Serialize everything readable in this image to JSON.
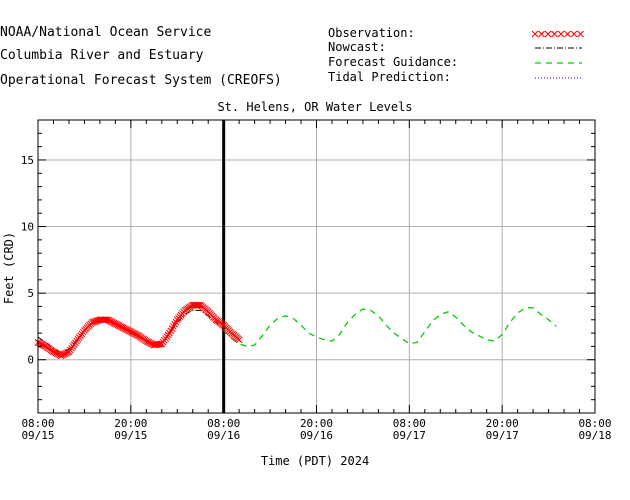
{
  "header": {
    "line1": "NOAA/National Ocean Service",
    "line2": "Columbia River and Estuary",
    "line3": "Operational Forecast System (CREOFS)"
  },
  "legend": {
    "observation": "Observation:",
    "nowcast": "Nowcast:",
    "forecast_guidance": "Forecast Guidance:",
    "tidal_prediction": "Tidal Prediction:"
  },
  "colors": {
    "observation": "#ff0000",
    "nowcast": "#000000",
    "forecast": "#00cc00",
    "tidal": "#0000ff"
  },
  "chart_data": {
    "type": "line",
    "title": "St. Helens, OR Water Levels",
    "xlabel": "Time (PDT) 2024",
    "ylabel": "Feet (CRD)",
    "ylim": [
      -4,
      18
    ],
    "yticks": [
      0,
      5,
      10,
      15
    ],
    "x_range_hours": [
      0,
      72
    ],
    "xtick_labels": [
      [
        "08:00",
        "09/15"
      ],
      [
        "20:00",
        "09/15"
      ],
      [
        "08:00",
        "09/16"
      ],
      [
        "20:00",
        "09/16"
      ],
      [
        "08:00",
        "09/17"
      ],
      [
        "20:00",
        "09/17"
      ],
      [
        "08:00",
        "09/18"
      ]
    ],
    "nowcast_marker_hours": 24,
    "series": [
      {
        "name": "Observation",
        "style": "x-markers",
        "points": [
          [
            0,
            1.3
          ],
          [
            1,
            1.0
          ],
          [
            2,
            0.6
          ],
          [
            3,
            0.3
          ],
          [
            4,
            0.6
          ],
          [
            5,
            1.4
          ],
          [
            6,
            2.2
          ],
          [
            7,
            2.8
          ],
          [
            8,
            3.0
          ],
          [
            9,
            3.0
          ],
          [
            10,
            2.7
          ],
          [
            11,
            2.4
          ],
          [
            12,
            2.1
          ],
          [
            13,
            1.8
          ],
          [
            14,
            1.4
          ],
          [
            15,
            1.1
          ],
          [
            16,
            1.2
          ],
          [
            17,
            2.0
          ],
          [
            18,
            3.0
          ],
          [
            19,
            3.7
          ],
          [
            20,
            4.1
          ],
          [
            21,
            4.1
          ],
          [
            22,
            3.6
          ],
          [
            23,
            3.0
          ],
          [
            24,
            2.6
          ],
          [
            25,
            2.0
          ],
          [
            26,
            1.5
          ]
        ]
      },
      {
        "name": "Nowcast",
        "style": "dash-dot",
        "points": [
          [
            0,
            1.7
          ],
          [
            1,
            1.3
          ],
          [
            2,
            0.8
          ],
          [
            3,
            0.5
          ],
          [
            4,
            0.8
          ],
          [
            5,
            1.5
          ],
          [
            6,
            2.2
          ],
          [
            7,
            2.8
          ],
          [
            8,
            3.0
          ],
          [
            9,
            3.0
          ],
          [
            10,
            2.7
          ],
          [
            11,
            2.4
          ],
          [
            12,
            2.0
          ],
          [
            13,
            1.7
          ],
          [
            14,
            1.4
          ],
          [
            15,
            1.1
          ],
          [
            16,
            1.2
          ],
          [
            17,
            1.9
          ],
          [
            18,
            2.8
          ],
          [
            19,
            3.4
          ],
          [
            20,
            3.7
          ],
          [
            21,
            3.7
          ],
          [
            22,
            3.3
          ],
          [
            23,
            2.8
          ],
          [
            24,
            2.2
          ]
        ]
      },
      {
        "name": "Forecast Guidance",
        "style": "dashed",
        "points": [
          [
            24,
            2.2
          ],
          [
            25,
            1.6
          ],
          [
            26,
            1.2
          ],
          [
            27,
            1.0
          ],
          [
            28,
            1.1
          ],
          [
            29,
            1.8
          ],
          [
            30,
            2.6
          ],
          [
            31,
            3.1
          ],
          [
            32,
            3.3
          ],
          [
            33,
            3.1
          ],
          [
            34,
            2.6
          ],
          [
            35,
            2.0
          ],
          [
            36,
            1.7
          ],
          [
            37,
            1.5
          ],
          [
            38,
            1.4
          ],
          [
            39,
            1.9
          ],
          [
            40,
            2.8
          ],
          [
            41,
            3.4
          ],
          [
            42,
            3.8
          ],
          [
            43,
            3.7
          ],
          [
            44,
            3.3
          ],
          [
            45,
            2.6
          ],
          [
            46,
            2.0
          ],
          [
            47,
            1.6
          ],
          [
            48,
            1.2
          ],
          [
            49,
            1.3
          ],
          [
            50,
            2.1
          ],
          [
            51,
            2.9
          ],
          [
            52,
            3.4
          ],
          [
            53,
            3.6
          ],
          [
            54,
            3.2
          ],
          [
            55,
            2.6
          ],
          [
            56,
            2.1
          ],
          [
            57,
            1.8
          ],
          [
            58,
            1.5
          ],
          [
            59,
            1.4
          ],
          [
            60,
            1.9
          ],
          [
            61,
            2.8
          ],
          [
            62,
            3.5
          ],
          [
            63,
            3.9
          ],
          [
            64,
            3.9
          ],
          [
            65,
            3.4
          ],
          [
            66,
            3.0
          ],
          [
            67,
            2.5
          ]
        ]
      }
    ]
  }
}
